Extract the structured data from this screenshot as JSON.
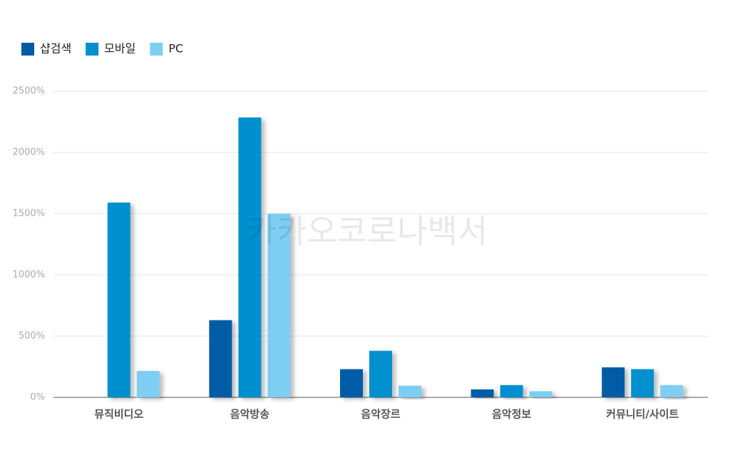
{
  "chart_data": {
    "type": "bar",
    "categories": [
      "뮤직비디오",
      "음악방송",
      "음악장르",
      "음악정보",
      "커뮤니티/사이트"
    ],
    "series": [
      {
        "name": "샵검색",
        "color": "#005ba6",
        "values": [
          null,
          630,
          230,
          65,
          245
        ]
      },
      {
        "name": "모바일",
        "color": "#0090d0",
        "values": [
          1590,
          2285,
          380,
          100,
          230
        ]
      },
      {
        "name": "PC",
        "color": "#7ecef4",
        "values": [
          215,
          1500,
          95,
          50,
          100
        ]
      }
    ],
    "ylim": [
      0,
      2500
    ],
    "yticks": [
      {
        "value": 0,
        "label": "0%"
      },
      {
        "value": 500,
        "label": "500%"
      },
      {
        "value": 1000,
        "label": "1000%"
      },
      {
        "value": 1500,
        "label": "1500%"
      },
      {
        "value": 2000,
        "label": "2000%"
      },
      {
        "value": 2500,
        "label": "2500%"
      }
    ],
    "grid": true,
    "legend": "top-left",
    "watermark": "카카오코로나백서"
  }
}
